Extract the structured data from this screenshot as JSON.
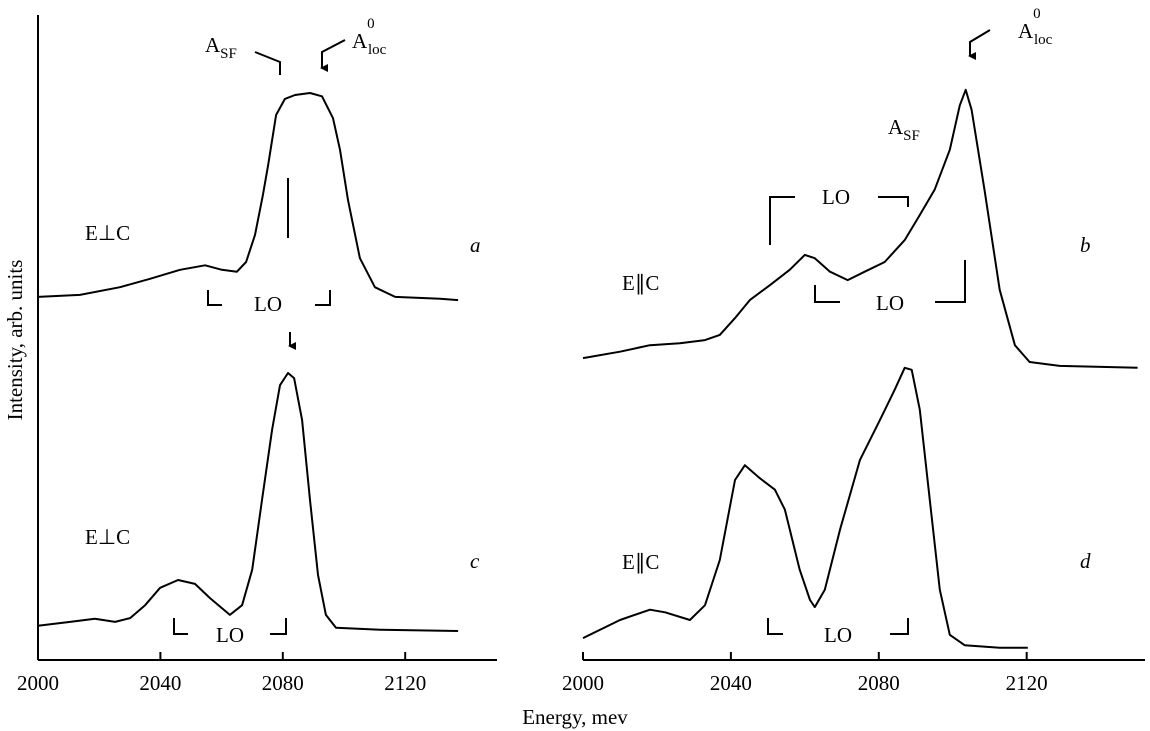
{
  "figure": {
    "xlabel": "Energy, mev",
    "ylabel": "Intensity, arb. units"
  },
  "chart_data": [
    {
      "type": "line",
      "xlim": [
        2000,
        2150
      ],
      "ylim": [
        0,
        100
      ],
      "xticks": [
        2000,
        2040,
        2080,
        2120
      ],
      "yaxis": true,
      "annotations": [
        {
          "main": "A",
          "sub": "SF"
        },
        {
          "main": "A",
          "sup": "0",
          "sub": "loc"
        },
        {
          "main": "E⊥C"
        },
        {
          "main": "LO"
        },
        {
          "main": "E⊥C"
        },
        {
          "main": "LO"
        }
      ],
      "series": [
        {
          "name": "a",
          "color": "#000000",
          "x": [
            2000,
            2013.7,
            2026.8,
            2036.6,
            2046.4,
            2054.6,
            2060.1,
            2065.0,
            2068.0,
            2070.9,
            2073.5,
            2075.2,
            2077.8,
            2080.7,
            2084.0,
            2088.9,
            2092.8,
            2096.4,
            2098.7,
            2101.3,
            2105.2,
            2110.1,
            2116.7,
            2131.4,
            2137.3
          ],
          "values": [
            56.3,
            56.6,
            57.8,
            59.1,
            60.5,
            61.2,
            60.5,
            60.2,
            61.7,
            65.9,
            72.1,
            76.7,
            84.5,
            87.0,
            87.6,
            87.9,
            87.4,
            84.0,
            79.1,
            71.3,
            62.3,
            57.8,
            56.3,
            56.0,
            55.8
          ]
        },
        {
          "name": "c",
          "color": "#000000",
          "x": [
            2000,
            2010.5,
            2018.6,
            2025.2,
            2030.1,
            2035.0,
            2039.9,
            2045.8,
            2051.3,
            2056.2,
            2062.7,
            2066.7,
            2070.0,
            2073.2,
            2076.5,
            2079.1,
            2081.7,
            2083.7,
            2086.3,
            2088.9,
            2091.5,
            2094.1,
            2097.4,
            2111.8,
            2137.3
          ],
          "values": [
            5.3,
            5.9,
            6.4,
            5.9,
            6.5,
            8.5,
            11.2,
            12.4,
            11.8,
            9.6,
            7.0,
            8.5,
            14.0,
            24.8,
            35.7,
            42.6,
            44.5,
            43.7,
            37.2,
            24.8,
            13.2,
            7.0,
            5.0,
            4.7,
            4.5
          ]
        }
      ]
    },
    {
      "type": "line",
      "xlim": [
        2000,
        2152
      ],
      "ylim": [
        0,
        100
      ],
      "xticks": [
        2000,
        2040,
        2080,
        2120
      ],
      "yaxis": false,
      "annotations": [
        {
          "main": "A",
          "sup": "0",
          "sub": "loc"
        },
        {
          "main": "A",
          "sub": "SF"
        },
        {
          "main": "LO"
        },
        {
          "main": "LO"
        },
        {
          "main": "E∥C"
        },
        {
          "main": "LO"
        },
        {
          "main": "E∥C"
        }
      ],
      "series": [
        {
          "name": "b",
          "color": "#000000",
          "x": [
            2000,
            2010.0,
            2018.1,
            2026.2,
            2033.0,
            2037.0,
            2041.1,
            2045.1,
            2050.5,
            2055.9,
            2060.0,
            2062.7,
            2066.8,
            2071.6,
            2076.2,
            2081.6,
            2087.0,
            2091.1,
            2095.1,
            2099.2,
            2101.9,
            2103.5,
            2105.1,
            2108.6,
            2112.7,
            2116.8,
            2120.8,
            2128.9,
            2150.0
          ],
          "values": [
            46.8,
            47.8,
            48.8,
            49.1,
            49.6,
            50.4,
            53.0,
            55.8,
            58.1,
            60.5,
            62.8,
            62.3,
            60.2,
            58.9,
            60.2,
            61.7,
            65.1,
            69.0,
            72.9,
            79.1,
            86.0,
            88.4,
            85.3,
            72.9,
            57.4,
            48.8,
            46.2,
            45.6,
            45.3
          ]
        },
        {
          "name": "d",
          "color": "#000000",
          "x": [
            2000,
            2010.0,
            2018.1,
            2022.2,
            2028.9,
            2033.0,
            2037.0,
            2041.1,
            2043.8,
            2047.8,
            2051.9,
            2054.6,
            2058.6,
            2061.4,
            2062.7,
            2065.4,
            2069.5,
            2074.9,
            2080.3,
            2084.3,
            2087.0,
            2088.9,
            2091.1,
            2093.8,
            2096.5,
            2099.2,
            2103.2,
            2112.7,
            2120.3
          ],
          "values": [
            3.4,
            6.2,
            7.8,
            7.4,
            6.2,
            8.5,
            15.5,
            27.9,
            30.2,
            28.2,
            26.4,
            23.3,
            14.0,
            9.3,
            8.2,
            10.9,
            20.2,
            31.0,
            37.2,
            41.9,
            45.3,
            45.0,
            38.8,
            24.8,
            10.9,
            3.9,
            2.3,
            1.9,
            1.9
          ]
        }
      ]
    }
  ]
}
